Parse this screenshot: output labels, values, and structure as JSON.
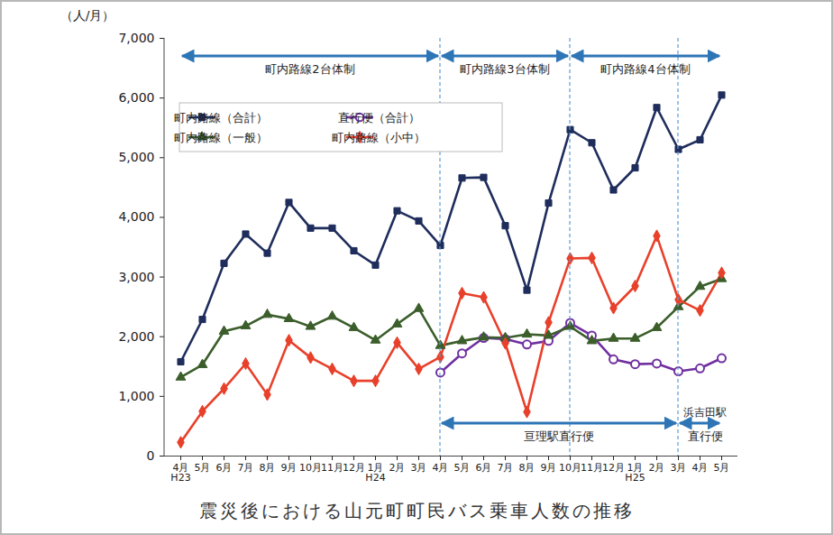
{
  "chart_data": {
    "type": "line",
    "title": "震災後における山元町町民バス乗車人数の推移",
    "y_label": "（人/月）",
    "categories": [
      "4月\nH23",
      "5月",
      "6月",
      "7月",
      "8月",
      "9月",
      "10月",
      "11月",
      "12月",
      "1月\nH24",
      "2月",
      "3月",
      "4月",
      "5月",
      "6月",
      "7月",
      "8月",
      "9月",
      "10月",
      "11月",
      "12月",
      "1月\nH25",
      "2月",
      "3月",
      "4月",
      "5月"
    ],
    "series": [
      {
        "name": "町内路線（合計）",
        "color": "#1f2d5c",
        "marker": "square",
        "values": [
          1580,
          2290,
          3230,
          3720,
          3400,
          4250,
          3820,
          3820,
          3440,
          3200,
          4110,
          3940,
          3530,
          4660,
          4670,
          3860,
          2780,
          4240,
          5470,
          5250,
          4460,
          4830,
          5840,
          5140,
          5300,
          6050
        ]
      },
      {
        "name": "直行便（合計）",
        "color": "#7030a0",
        "marker": "open_circle",
        "values": [
          null,
          null,
          null,
          null,
          null,
          null,
          null,
          null,
          null,
          null,
          null,
          null,
          1400,
          1720,
          1980,
          1960,
          1870,
          1930,
          2230,
          2020,
          1620,
          1540,
          1550,
          1420,
          1470,
          1640
        ]
      },
      {
        "name": "町内路線（一般）",
        "color": "#3b5e2b",
        "marker": "triangle",
        "values": [
          1320,
          1530,
          2090,
          2180,
          2370,
          2300,
          2170,
          2340,
          2150,
          1940,
          2210,
          2470,
          1850,
          1930,
          1990,
          1980,
          2040,
          2020,
          2170,
          1930,
          1970,
          1970,
          2150,
          2500,
          2840,
          2970
        ]
      },
      {
        "name": "町内路線（小中）",
        "color": "#e8402a",
        "marker": "diamond",
        "values": [
          230,
          750,
          1130,
          1550,
          1030,
          1940,
          1650,
          1460,
          1260,
          1260,
          1900,
          1460,
          1660,
          2730,
          2660,
          1890,
          740,
          2240,
          3310,
          3320,
          2480,
          2850,
          3690,
          2620,
          2440,
          3070
        ]
      }
    ],
    "ylim": [
      0,
      7000
    ],
    "yticks": [
      0,
      {
        "value": 1000,
        "label": "1,000"
      },
      {
        "value": 2000,
        "label": "2,000"
      },
      {
        "value": 3000,
        "label": "3,000"
      },
      {
        "value": 4000,
        "label": "4,000"
      },
      {
        "value": 5000,
        "label": "5,000"
      },
      {
        "value": 6000,
        "label": "6,000"
      },
      {
        "value": 7000,
        "label": "7,000"
      }
    ],
    "grid": false,
    "legend": "top-left",
    "annotations": [
      {
        "text": "町内路線2台体制",
        "from": 0,
        "to": 12,
        "position": "top"
      },
      {
        "text": "町内路線3台体制",
        "from": 12,
        "to": 18,
        "position": "top"
      },
      {
        "text": "町内路線4台体制",
        "from": 18,
        "to": 25,
        "position": "top"
      },
      {
        "text": "亘理駅直行便",
        "from": 12,
        "to": 23,
        "position": "bottom"
      },
      {
        "text": "直行便",
        "text_above": "浜吉田駅",
        "from": 23,
        "to": 25,
        "position": "bottom"
      }
    ]
  }
}
